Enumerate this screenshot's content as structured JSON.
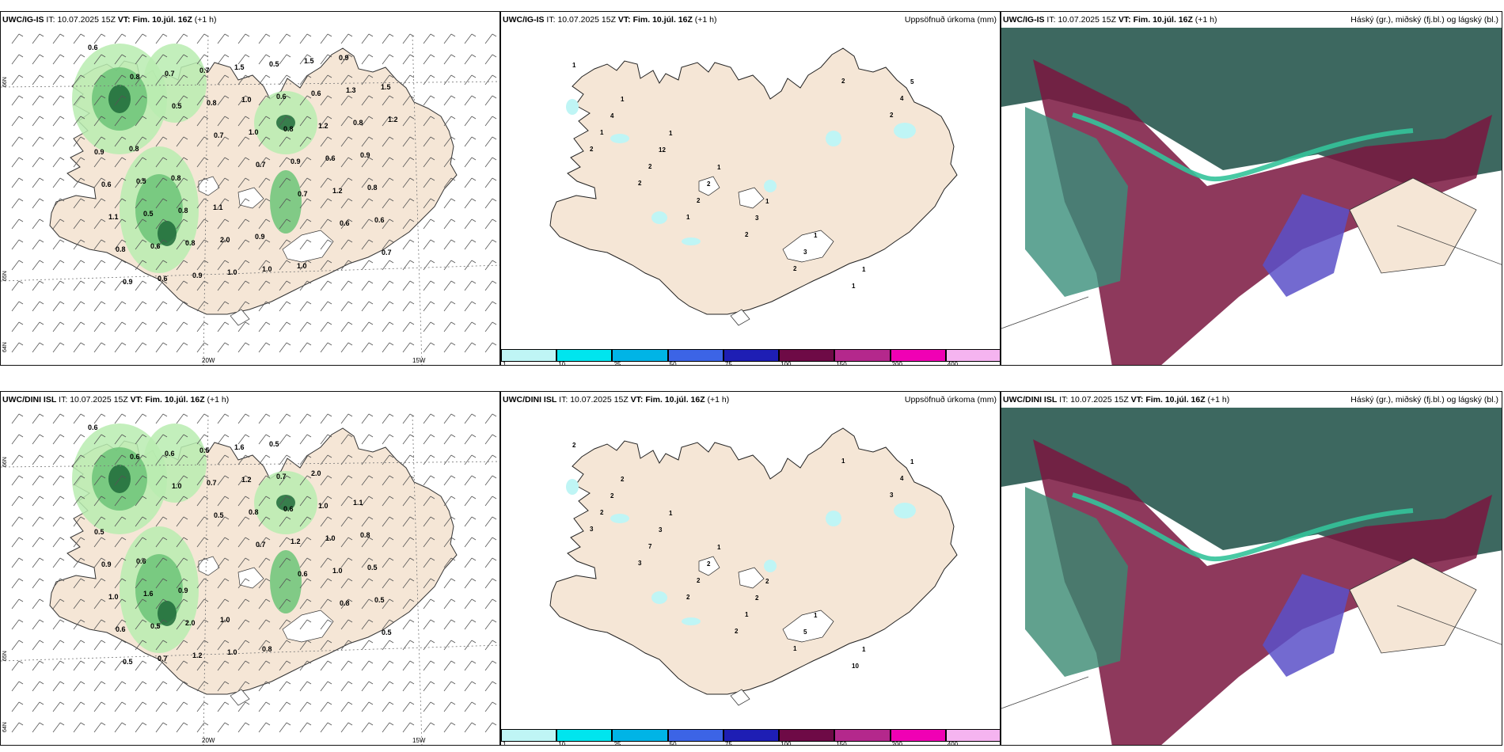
{
  "panels": {
    "p1": {
      "model": "UWC/IG-IS",
      "it_label": "IT:",
      "it_time": "10.07.2025 15Z",
      "vt_label": "VT:",
      "vt_time": "Fim. 10.júl. 16Z",
      "lead": "(+1 h)",
      "right": ""
    },
    "p2": {
      "model": "UWC/IG-IS",
      "it_label": "IT:",
      "it_time": "10.07.2025 15Z",
      "vt_label": "VT:",
      "vt_time": "Fim. 10.júl. 16Z",
      "lead": "(+1 h)",
      "right": "Uppsöfnuð úrkoma (mm)"
    },
    "p3": {
      "model": "UWC/IG-IS",
      "it_label": "IT:",
      "it_time": "10.07.2025 15Z",
      "vt_label": "VT:",
      "vt_time": "Fim. 10.júl. 16Z",
      "lead": "(+1 h)",
      "right": "Háský (gr.), miðský (fj.bl.) og lágský (bl.)"
    },
    "p4": {
      "model": "UWC/DINI ISL",
      "it_label": "IT:",
      "it_time": "10.07.2025 15Z",
      "vt_label": "VT:",
      "vt_time": "Fim. 10.júl. 16Z",
      "lead": "(+1 h)",
      "right": ""
    },
    "p5": {
      "model": "UWC/DINI ISL",
      "it_label": "IT:",
      "it_time": "10.07.2025 15Z",
      "vt_label": "VT:",
      "vt_time": "Fim. 10.júl. 16Z",
      "lead": "(+1 h)",
      "right": "Uppsöfnuð úrkoma (mm)"
    },
    "p6": {
      "model": "UWC/DINI ISL",
      "it_label": "IT:",
      "it_time": "10.07.2025 15Z",
      "vt_label": "VT:",
      "vt_time": "Fim. 10.júl. 16Z",
      "lead": "(+1 h)",
      "right": "Háský (gr.), miðský (fj.bl.) og lágský (bl.)"
    }
  },
  "axis_labels": {
    "lat66": "66N",
    "lat64": "64N",
    "lat25w": "25W",
    "lon20": "20W",
    "lon15": "15W",
    "lat65": "65N"
  },
  "colorbar": {
    "colors": [
      "#bff5f5",
      "#00e5ee",
      "#00b4e6",
      "#3c64e6",
      "#1e1eb4",
      "#6e0a46",
      "#b4288c",
      "#f000b4",
      "#f5b4f0"
    ],
    "ticks": [
      "1",
      "10",
      "25",
      "50",
      "75",
      "100",
      "150",
      "200",
      "400"
    ]
  },
  "rain_top": [
    "0.6",
    "0.8",
    "0.5",
    "0.7",
    "0.7",
    "0.7",
    "0.6",
    "0.7",
    "0.9",
    "0.7",
    "0.8",
    "1.0",
    "0.9",
    "1.2",
    "0.6",
    "0.8",
    "0.6",
    "0.7",
    "1.0",
    "0.8",
    "0.6",
    "0.8",
    "1.1",
    "0.6",
    "0.9",
    "1.5",
    "0.6",
    "1.2",
    "0.9",
    "0.6",
    "0.5",
    "0.8",
    "1.0",
    "0.5",
    "0.6",
    "0.8",
    "0.9",
    "0.5",
    "0.8",
    "2.0",
    "1.0",
    "1.5",
    "1.3",
    "1.2",
    "0.8",
    "0.8",
    "1.1",
    "0.9",
    "1.0",
    "0.9",
    "1.5"
  ],
  "rain_bottom": [
    "0.6",
    "0.6",
    "1.0",
    "0.5",
    "0.7",
    "0.6",
    "0.8",
    "0.5",
    "0.5",
    "0.6",
    "0.7",
    "0.8",
    "1.2",
    "1.0",
    "0.5",
    "0.6",
    "0.7",
    "0.5",
    "1.2",
    "0.6",
    "1.0",
    "0.5",
    "1.0",
    "0.5",
    "1.2",
    "1.6",
    "0.7",
    "1.0",
    "0.8",
    "0.9",
    "1.6",
    "2.0",
    "1.0",
    "0.5",
    "2.0",
    "1.1",
    "0.5",
    "0.6",
    "0.9",
    "1.0",
    "0.8"
  ],
  "accum_top": [
    "1",
    "1",
    "1",
    "1",
    "1",
    "1",
    "1",
    "5",
    "4",
    "12",
    "2",
    "3",
    "3",
    "1",
    "4",
    "1",
    "2",
    "2",
    "2",
    "2",
    "2",
    "2",
    "2",
    "2",
    "1"
  ],
  "accum_bottom": [
    "2",
    "2",
    "1",
    "1",
    "2",
    "1",
    "1",
    "1",
    "2",
    "3",
    "2",
    "2",
    "5",
    "10",
    "4",
    "2",
    "7",
    "2",
    "1",
    "1",
    "1",
    "3",
    "3",
    "3",
    "2",
    "2"
  ],
  "colors": {
    "land": "#f5e6d6",
    "green_light": "#b8ecb0",
    "green_mid": "#6cc478",
    "green_dark": "#1f6b3a",
    "cloud_high": "#2c5b52",
    "cloud_mid": "#7a1640",
    "cloud_low": "#5a50c8",
    "cloud_teal": "#34c39a"
  }
}
